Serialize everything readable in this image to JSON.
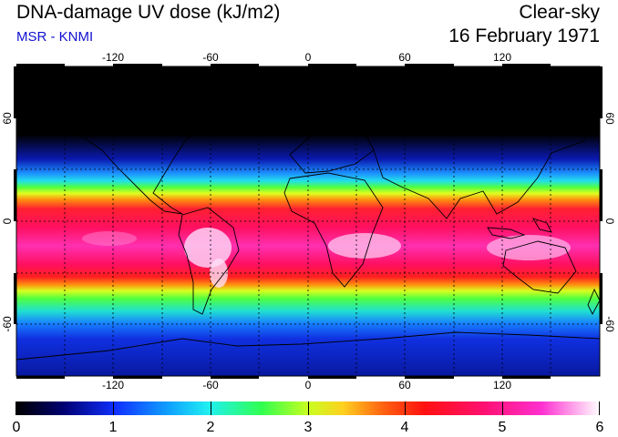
{
  "header": {
    "title": "DNA-damage UV dose (kJ/m2)",
    "subtitle": "MSR - KNMI",
    "condition": "Clear-sky",
    "date": "16 February 1971"
  },
  "map": {
    "lon_ticks": [
      "-120",
      "-60",
      "0",
      "60",
      "120"
    ],
    "lat_ticks": [
      "60",
      "0",
      "-60"
    ]
  },
  "colorbar": {
    "labels": [
      "0",
      "1",
      "2",
      "3",
      "4",
      "5",
      "6"
    ]
  },
  "colors": {
    "accent_blue": "#1010d0"
  }
}
